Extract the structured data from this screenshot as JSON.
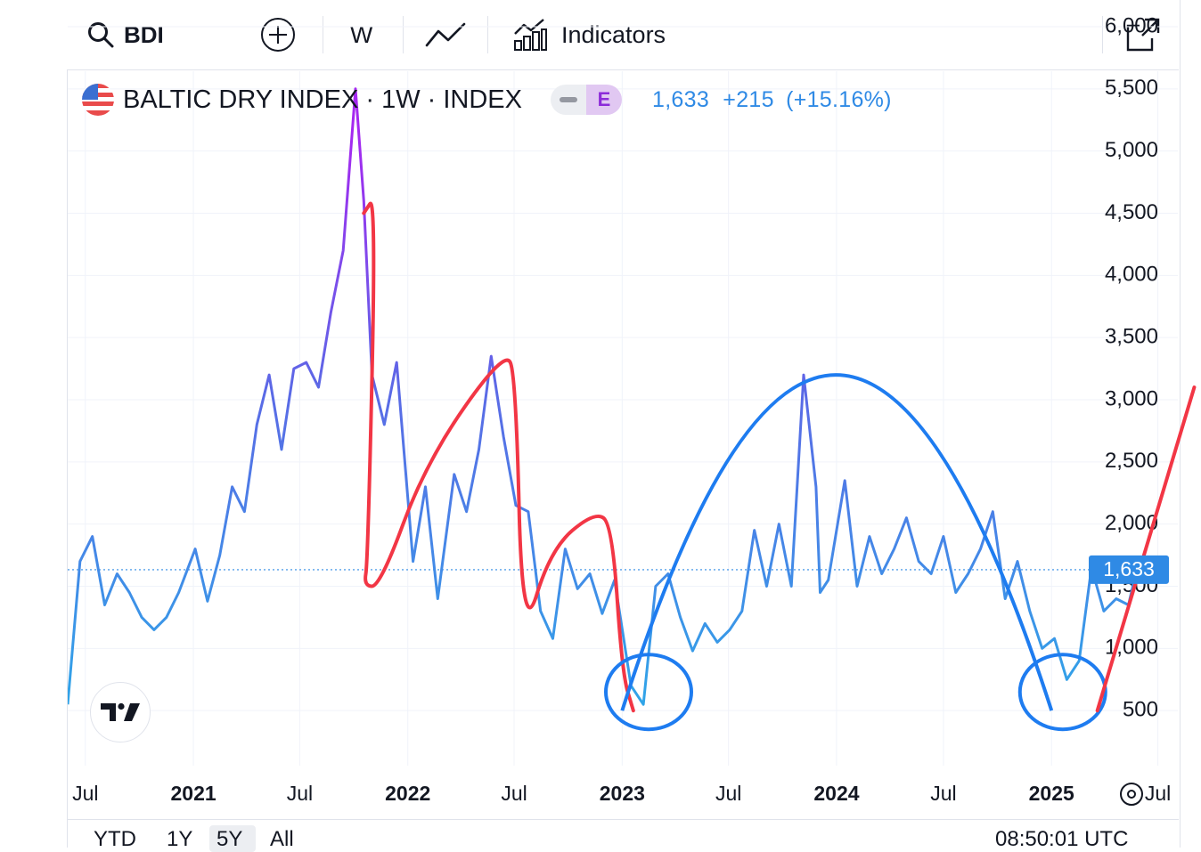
{
  "toolbar": {
    "symbol": "BDI",
    "interval": "W",
    "indicators_label": "Indicators"
  },
  "legend": {
    "title": "BALTIC DRY INDEX · 1W · INDEX",
    "badge": "E",
    "last": "1,633",
    "change": "+215",
    "change_pct": "(+15.16%)"
  },
  "bottom_bar": {
    "ranges": [
      "YTD",
      "1Y",
      "5Y",
      "All"
    ],
    "selected_range": "5Y",
    "time": "08:50:01 UTC"
  },
  "colors": {
    "line_blue": "#2f8ae5",
    "line_purple": "#a528f0",
    "annotation_red": "#f23645",
    "annotation_blue": "#1e7cf0",
    "price_tag": "#2f8ae5"
  },
  "chart_data": {
    "type": "line",
    "series": [
      {
        "x": [
          "2020-06-01",
          "2020-06-22",
          "2020-07-13",
          "2020-08-03",
          "2020-08-24",
          "2020-09-14",
          "2020-10-05",
          "2020-10-26",
          "2020-11-16",
          "2020-12-07",
          "2021-01-04",
          "2021-01-25",
          "2021-02-15",
          "2021-03-08",
          "2021-03-29",
          "2021-04-19",
          "2021-05-10",
          "2021-05-31",
          "2021-06-21",
          "2021-07-12",
          "2021-08-02",
          "2021-08-23",
          "2021-09-13",
          "2021-10-04",
          "2021-10-18",
          "2021-11-01",
          "2021-11-22",
          "2021-12-13",
          "2022-01-10",
          "2022-01-31",
          "2022-02-21",
          "2022-03-21",
          "2022-04-11",
          "2022-05-02",
          "2022-05-23",
          "2022-06-13",
          "2022-07-04",
          "2022-07-25",
          "2022-08-15",
          "2022-09-05",
          "2022-09-26",
          "2022-10-17",
          "2022-11-07",
          "2022-11-28",
          "2022-12-19",
          "2023-01-16",
          "2023-02-06",
          "2023-02-27",
          "2023-03-20",
          "2023-04-10",
          "2023-05-01",
          "2023-05-22",
          "2023-06-12",
          "2023-07-03",
          "2023-07-24",
          "2023-08-14",
          "2023-09-04",
          "2023-09-25",
          "2023-10-16",
          "2023-11-06",
          "2023-11-27",
          "2023-12-04",
          "2023-12-18",
          "2024-01-15",
          "2024-02-05",
          "2024-02-26",
          "2024-03-18",
          "2024-04-08",
          "2024-04-29",
          "2024-05-20",
          "2024-06-10",
          "2024-07-01",
          "2024-07-22",
          "2024-08-12",
          "2024-09-02",
          "2024-09-23",
          "2024-10-14",
          "2024-11-04",
          "2024-11-25",
          "2024-12-16",
          "2025-01-06",
          "2025-01-27",
          "2025-02-17",
          "2025-03-10",
          "2025-03-31",
          "2025-04-21",
          "2025-05-12",
          "2025-05-26"
        ],
        "values": [
          550,
          1700,
          1900,
          1350,
          1600,
          1450,
          1250,
          1150,
          1250,
          1450,
          1800,
          1380,
          1750,
          2300,
          2100,
          2800,
          3200,
          2600,
          3250,
          3300,
          3100,
          3700,
          4200,
          5500,
          4600,
          3200,
          2800,
          3300,
          1700,
          2300,
          1400,
          2400,
          2100,
          2600,
          3350,
          2700,
          2150,
          2100,
          1300,
          1080,
          1800,
          1480,
          1600,
          1280,
          1550,
          700,
          550,
          1500,
          1600,
          1250,
          980,
          1200,
          1050,
          1150,
          1300,
          1950,
          1500,
          2000,
          1500,
          3200,
          2300,
          1450,
          1550,
          2350,
          1500,
          1900,
          1600,
          1800,
          2050,
          1700,
          1600,
          1900,
          1450,
          1600,
          1800,
          2100,
          1400,
          1700,
          1300,
          1000,
          1080,
          750,
          900,
          1650,
          1300,
          1400,
          1350,
          1633
        ]
      }
    ],
    "ytick_labels": [
      "500",
      "1,000",
      "1,500",
      "2,000",
      "2,500",
      "3,000",
      "3,500",
      "4,000",
      "4,500",
      "5,000",
      "5,500",
      "6,000"
    ],
    "xtick_labels": [
      "Jul",
      "2021",
      "Jul",
      "2022",
      "Jul",
      "2023",
      "Jul",
      "2024",
      "Jul",
      "2025",
      "Jul"
    ],
    "ylim": [
      0,
      6000
    ],
    "xlim": [
      "2020-06-01",
      "2025-08-01"
    ],
    "last_value_tag": "1,633",
    "annotations": [
      {
        "type": "freehand",
        "color": "red",
        "points": [
          [
            "2021-10-18",
            4500
          ],
          [
            "2021-11-08",
            4650
          ],
          [
            "2021-10-25",
            1700
          ],
          [
            "2021-10-18",
            1500
          ],
          [
            "2021-11-15",
            1500
          ],
          [
            "2022-02-01",
            2500
          ],
          [
            "2022-06-15",
            3400
          ],
          [
            "2022-07-04",
            3200
          ],
          [
            "2022-07-15",
            1050
          ],
          [
            "2022-09-01",
            1800
          ],
          [
            "2022-11-15",
            2100
          ],
          [
            "2022-12-15",
            2000
          ],
          [
            "2023-01-01",
            800
          ],
          [
            "2023-01-20",
            500
          ]
        ]
      },
      {
        "type": "arc",
        "color": "blue",
        "points": [
          [
            "2023-01-01",
            500
          ],
          [
            "2023-12-31",
            3200
          ],
          [
            "2025-01-01",
            500
          ]
        ]
      },
      {
        "type": "ellipse",
        "color": "blue",
        "center": [
          "2023-02-15",
          650
        ]
      },
      {
        "type": "ellipse",
        "color": "blue",
        "center": [
          "2025-01-20",
          650
        ]
      },
      {
        "type": "line",
        "color": "red",
        "points": [
          [
            "2025-03-20",
            500
          ],
          [
            "2025-09-01",
            3100
          ]
        ]
      }
    ]
  }
}
